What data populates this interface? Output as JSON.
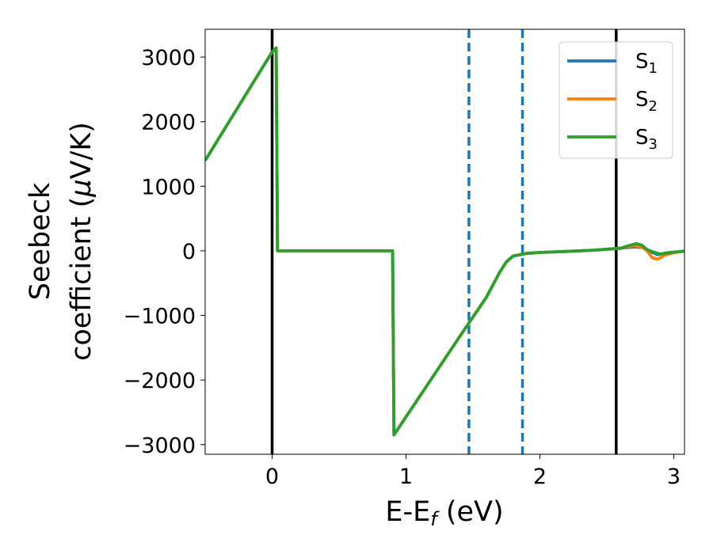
{
  "chart_data": {
    "type": "line",
    "xlabel": "E-E",
    "xlabel_sub": "f",
    "xlabel_unit": " (eV)",
    "ylabel_line1": "Seebeck",
    "ylabel_line2": "coefficient  (",
    "ylabel_mu": "μ",
    "ylabel_unit": "V/K)",
    "xlim": [
      -0.5,
      3.08
    ],
    "ylim": [
      -3150,
      3430
    ],
    "xticks": [
      0,
      1,
      2,
      3
    ],
    "xtick_labels": [
      "0",
      "1",
      "2",
      "3"
    ],
    "yticks": [
      3000,
      2000,
      1000,
      0,
      -1000,
      -2000,
      -3000
    ],
    "ytick_labels": [
      "3000",
      "2000",
      "1000",
      "0",
      "−1000",
      "−2000",
      "−3000"
    ],
    "legend_position": "upper right",
    "series": [
      {
        "name": "S",
        "sub": "1",
        "color": "#1f77b4",
        "x": [
          -0.5,
          0.0,
          0.03,
          0.04,
          0.9,
          0.91,
          1.4,
          1.6,
          1.7,
          1.75,
          1.8,
          1.9,
          2.0,
          2.2,
          2.4,
          2.6,
          2.7,
          2.78,
          2.82,
          2.88,
          2.95,
          3.08
        ],
        "y": [
          1400,
          3080,
          3140,
          0,
          0,
          -2850,
          -1330,
          -720,
          -330,
          -170,
          -80,
          -40,
          -25,
          -10,
          10,
          40,
          60,
          50,
          -10,
          -60,
          -30,
          -5
        ]
      },
      {
        "name": "S",
        "sub": "2",
        "color": "#ff7f0e",
        "x": [
          -0.5,
          0.0,
          0.03,
          0.04,
          0.9,
          0.91,
          1.4,
          1.6,
          1.7,
          1.75,
          1.8,
          1.9,
          2.0,
          2.2,
          2.4,
          2.6,
          2.7,
          2.76,
          2.8,
          2.84,
          2.88,
          2.93,
          3.0,
          3.08
        ],
        "y": [
          1400,
          3080,
          3140,
          0,
          0,
          -2850,
          -1330,
          -720,
          -330,
          -170,
          -80,
          -40,
          -25,
          -10,
          10,
          40,
          80,
          60,
          0,
          -110,
          -130,
          -70,
          -30,
          -5
        ]
      },
      {
        "name": "S",
        "sub": "3",
        "color": "#2ca02c",
        "x": [
          -0.5,
          0.0,
          0.03,
          0.04,
          0.9,
          0.91,
          1.4,
          1.6,
          1.7,
          1.75,
          1.8,
          1.9,
          2.0,
          2.2,
          2.4,
          2.6,
          2.68,
          2.72,
          2.76,
          2.8,
          2.85,
          2.9,
          3.0,
          3.08
        ],
        "y": [
          1400,
          3080,
          3140,
          0,
          0,
          -2850,
          -1330,
          -720,
          -330,
          -170,
          -80,
          -40,
          -25,
          -10,
          10,
          40,
          90,
          110,
          90,
          20,
          -20,
          -50,
          -20,
          -5
        ]
      }
    ],
    "vlines_solid": [
      0.0,
      2.57
    ],
    "vlines_dashed": [
      1.47,
      1.87
    ],
    "solid_line_color": "#000000",
    "dashed_line_color": "#1f77b4"
  }
}
